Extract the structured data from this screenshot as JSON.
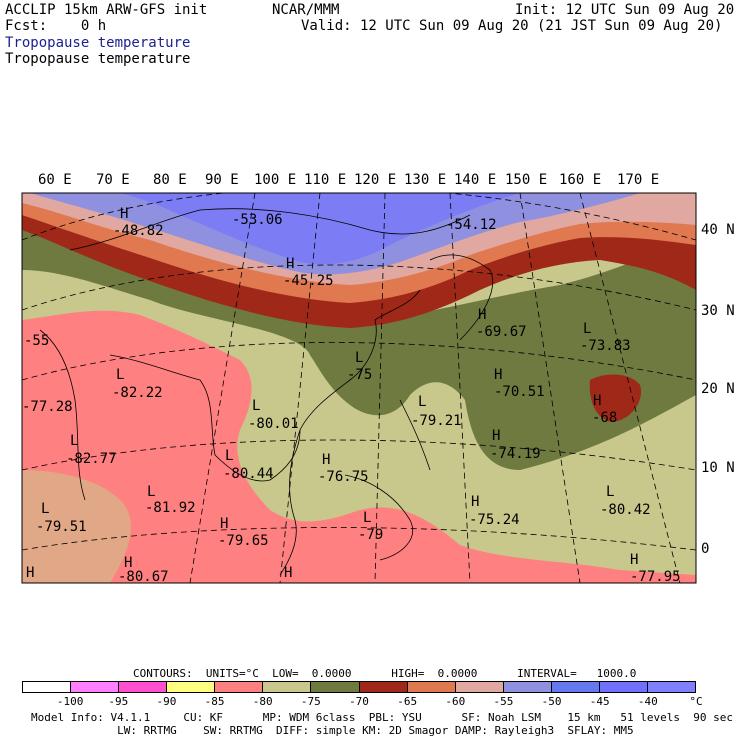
{
  "header": {
    "title_left": "ACCLIP 15km ARW-GFS init",
    "center": "NCAR/MMM",
    "init": "Init: 12 UTC Sun 09 Aug 20",
    "fcst": "Fcst:    0 h",
    "valid": "Valid: 12 UTC Sun 09 Aug 20 (21 JST Sun 09 Aug 20)",
    "field_line1": "Tropopause temperature",
    "field_line2": "Tropopause temperature"
  },
  "map": {
    "lon_labels": [
      "60 E",
      "70 E",
      "80 E",
      "90 E",
      "100 E",
      "110 E",
      "120 E",
      "130 E",
      "140 E",
      "150 E",
      "160 E",
      "170 E"
    ],
    "lat_labels": [
      "40 N",
      "30 N",
      "20 N",
      "10 N",
      "0"
    ],
    "extrema": [
      {
        "mark": "H",
        "value": "-48.82"
      },
      {
        "mark": "",
        "value": "-53.06"
      },
      {
        "mark": "H",
        "value": "-45.25"
      },
      {
        "mark": "",
        "value": "-54.12"
      },
      {
        "mark": "H",
        "value": "-69.67"
      },
      {
        "mark": "L",
        "value": "-73.83"
      },
      {
        "mark": "L",
        "value": "-75"
      },
      {
        "mark": "H",
        "value": "-70.51"
      },
      {
        "mark": "H",
        "value": "-68"
      },
      {
        "mark": "L",
        "value": "-82.22"
      },
      {
        "mark": "",
        "value": "-77.28"
      },
      {
        "mark": "",
        "value": "-55"
      },
      {
        "mark": "L",
        "value": "-80.01"
      },
      {
        "mark": "L",
        "value": "-79.21"
      },
      {
        "mark": "L",
        "value": "-82.77"
      },
      {
        "mark": "H",
        "value": "-74.19"
      },
      {
        "mark": "L",
        "value": "-80.44"
      },
      {
        "mark": "H",
        "value": "-76.75"
      },
      {
        "mark": "L",
        "value": "-79.51"
      },
      {
        "mark": "L",
        "value": "-81.92"
      },
      {
        "mark": "H",
        "value": "-79.65"
      },
      {
        "mark": "L",
        "value": "-79"
      },
      {
        "mark": "H",
        "value": "-75.24"
      },
      {
        "mark": "L",
        "value": "-80.42"
      },
      {
        "mark": "H",
        "value": "-80.67"
      },
      {
        "mark": "H",
        "value": "-77.95"
      },
      {
        "mark": "H",
        "value": ""
      }
    ]
  },
  "contours": {
    "line": "CONTOURS:  UNITS=°C  LOW=  0.0000      HIGH=  0.0000      INTERVAL=   1000.0"
  },
  "colorbar": {
    "colors": [
      "#ffffff",
      "#ff80ff",
      "#ff50d0",
      "#ffff80",
      "#ff8080",
      "#c8c88c",
      "#6e7a40",
      "#a02818",
      "#e07850",
      "#e0a8a0",
      "#9090e0",
      "#6478f0",
      "#7070ff",
      "#8080ff"
    ],
    "labels": [
      "-100",
      "-95",
      "-90",
      "-85",
      "-80",
      "-75",
      "-70",
      "-65",
      "-60",
      "-55",
      "-50",
      "-45",
      "-40",
      "°C"
    ]
  },
  "footer": {
    "line1": "Model Info: V4.1.1     CU: KF      MP: WDM 6class  PBL: YSU      SF: Noah LSM    15 km   51 levels  90 sec",
    "line2": "             LW: RRTMG    SW: RRTMG  DIFF: simple KM: 2D Smagor DAMP: Rayleigh3  SFLAY: MM5"
  }
}
